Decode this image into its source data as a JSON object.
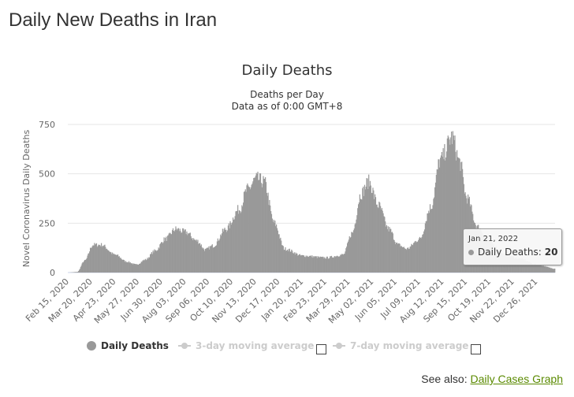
{
  "page": {
    "title": "Daily New Deaths in Iran"
  },
  "chart_data": {
    "type": "bar",
    "title": "Daily Deaths",
    "subtitle_line1": "Deaths per Day",
    "subtitle_line2": "Data as of 0:00 GMT+8",
    "ylabel": "Novel Coronavirus Daily Deaths",
    "xlabel": "",
    "ylim": [
      0,
      750
    ],
    "yticks": [
      0,
      250,
      500,
      750
    ],
    "grid": true,
    "bar_color": "#999999",
    "x_start": "Feb 15, 2020",
    "x_end": "Jan 21, 2022",
    "xtick_labels": [
      "Feb 15, 2020",
      "Mar 20, 2020",
      "Apr 23, 2020",
      "May 27, 2020",
      "Jun 30, 2020",
      "Aug 03, 2020",
      "Sep 06, 2020",
      "Oct 10, 2020",
      "Nov 13, 2020",
      "Dec 17, 2020",
      "Jan 20, 2021",
      "Feb 23, 2021",
      "Mar 29, 2021",
      "May 02, 2021",
      "Jun 05, 2021",
      "Jul 09, 2021",
      "Aug 12, 2021",
      "Sep 15, 2021",
      "Oct 19, 2021",
      "Nov 22, 2021",
      "Dec 26, 2021"
    ],
    "series": [
      {
        "name": "Daily Deaths",
        "daily_series_note": "",
        "keypoints": [
          {
            "date": "Feb 15, 2020",
            "value": 0
          },
          {
            "date": "Feb 28, 2020",
            "value": 3
          },
          {
            "date": "Mar 10, 2020",
            "value": 60
          },
          {
            "date": "Mar 22, 2020",
            "value": 140
          },
          {
            "date": "Apr 03, 2020",
            "value": 140
          },
          {
            "date": "Apr 23, 2020",
            "value": 90
          },
          {
            "date": "May 10, 2020",
            "value": 55
          },
          {
            "date": "May 24, 2020",
            "value": 40
          },
          {
            "date": "Jun 06, 2020",
            "value": 65
          },
          {
            "date": "Jun 20, 2020",
            "value": 110
          },
          {
            "date": "Jul 05, 2020",
            "value": 170
          },
          {
            "date": "Jul 20, 2020",
            "value": 220
          },
          {
            "date": "Aug 03, 2020",
            "value": 205
          },
          {
            "date": "Aug 20, 2020",
            "value": 160
          },
          {
            "date": "Sep 01, 2020",
            "value": 115
          },
          {
            "date": "Sep 12, 2020",
            "value": 135
          },
          {
            "date": "Oct 01, 2020",
            "value": 220
          },
          {
            "date": "Oct 20, 2020",
            "value": 320
          },
          {
            "date": "Nov 01, 2020",
            "value": 420
          },
          {
            "date": "Nov 14, 2020",
            "value": 475
          },
          {
            "date": "Nov 25, 2020",
            "value": 460
          },
          {
            "date": "Dec 10, 2020",
            "value": 250
          },
          {
            "date": "Dec 25, 2020",
            "value": 120
          },
          {
            "date": "Jan 20, 2021",
            "value": 85
          },
          {
            "date": "Feb 23, 2021",
            "value": 75
          },
          {
            "date": "Mar 20, 2021",
            "value": 90
          },
          {
            "date": "Apr 02, 2021",
            "value": 200
          },
          {
            "date": "Apr 15, 2021",
            "value": 400
          },
          {
            "date": "Apr 26, 2021",
            "value": 460
          },
          {
            "date": "May 10, 2021",
            "value": 340
          },
          {
            "date": "May 25, 2021",
            "value": 220
          },
          {
            "date": "Jun 08, 2021",
            "value": 140
          },
          {
            "date": "Jun 20, 2021",
            "value": 120
          },
          {
            "date": "Jul 09, 2021",
            "value": 170
          },
          {
            "date": "Jul 25, 2021",
            "value": 330
          },
          {
            "date": "Aug 08, 2021",
            "value": 570
          },
          {
            "date": "Aug 25, 2021",
            "value": 685
          },
          {
            "date": "Sep 05, 2021",
            "value": 560
          },
          {
            "date": "Sep 15, 2021",
            "value": 380
          },
          {
            "date": "Oct 01, 2021",
            "value": 230
          },
          {
            "date": "Oct 19, 2021",
            "value": 150
          },
          {
            "date": "Nov 10, 2021",
            "value": 90
          },
          {
            "date": "Dec 01, 2021",
            "value": 70
          },
          {
            "date": "Dec 26, 2021",
            "value": 40
          },
          {
            "date": "Jan 21, 2022",
            "value": 20
          }
        ]
      }
    ],
    "legend": {
      "placement": "bottom",
      "items": [
        {
          "label": "Daily Deaths",
          "state": "active",
          "color": "#999999"
        },
        {
          "label": "3-day moving average",
          "state": "hidden",
          "color": "#cccccc"
        },
        {
          "label": "7-day moving average",
          "state": "hidden",
          "color": "#cccccc"
        }
      ]
    },
    "tooltip": {
      "date": "Jan 21, 2022",
      "series_label": "Daily Deaths:",
      "value": "20"
    }
  },
  "see_also": {
    "prefix": "See also:",
    "link_text": "Daily Cases Graph",
    "link_color": "#5a8a00"
  }
}
